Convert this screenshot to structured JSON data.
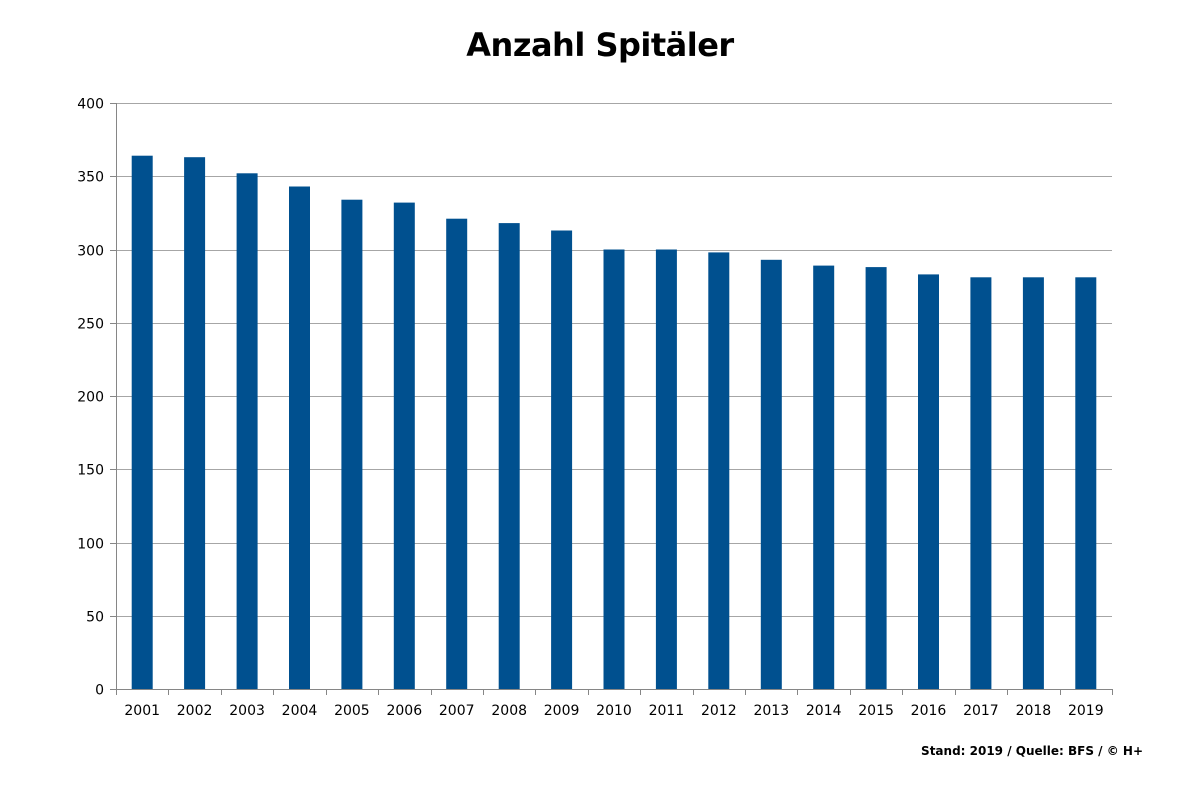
{
  "chart_data": {
    "type": "bar",
    "title": "Anzahl Spitäler",
    "xlabel": "",
    "ylabel": "",
    "categories": [
      "2001",
      "2002",
      "2003",
      "2004",
      "2005",
      "2006",
      "2007",
      "2008",
      "2009",
      "2010",
      "2011",
      "2012",
      "2013",
      "2014",
      "2015",
      "2016",
      "2017",
      "2018",
      "2019"
    ],
    "values": [
      364,
      363,
      352,
      343,
      334,
      332,
      321,
      318,
      313,
      300,
      300,
      298,
      293,
      289,
      288,
      283,
      281,
      281,
      281
    ],
    "ylim": [
      0,
      400
    ],
    "yticks": [
      "0",
      "50",
      "100",
      "150",
      "200",
      "250",
      "300",
      "350",
      "400"
    ],
    "grid": true,
    "legend": "none",
    "bar_color": "#00508F"
  },
  "footer": {
    "source": "Stand: 2019 / Quelle: BFS / © H+"
  }
}
